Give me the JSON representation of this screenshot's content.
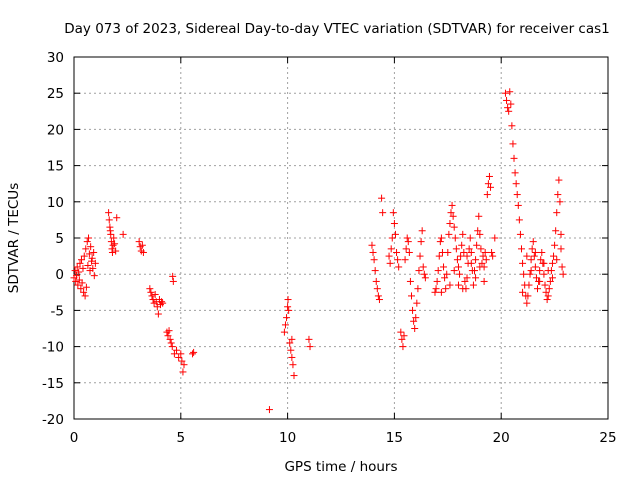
{
  "chart_data": {
    "type": "scatter",
    "title": "Day 073 of 2023, Sidereal Day-to-day VTEC variation (SDTVAR) for receiver cas1",
    "xlabel": "GPS time / hours",
    "ylabel": "SDTVAR / TECUs",
    "xlim": [
      0,
      25
    ],
    "ylim": [
      -20,
      30
    ],
    "xticks": [
      0,
      5,
      10,
      15,
      20,
      25
    ],
    "yticks": [
      -20,
      -15,
      -10,
      -5,
      0,
      5,
      10,
      15,
      20,
      25,
      30
    ],
    "grid": true,
    "marker": "+",
    "color": "#ff0000",
    "series": [
      {
        "name": "cas1",
        "points": [
          [
            0.0,
            -0.5
          ],
          [
            0.05,
            0.5
          ],
          [
            0.08,
            -1.0
          ],
          [
            0.12,
            -0.2
          ],
          [
            0.15,
            1.0
          ],
          [
            0.18,
            -1.5
          ],
          [
            0.22,
            0.3
          ],
          [
            0.25,
            -0.8
          ],
          [
            0.28,
            1.5
          ],
          [
            0.32,
            -2.0
          ],
          [
            0.35,
            2.0
          ],
          [
            0.38,
            -1.2
          ],
          [
            0.42,
            0.8
          ],
          [
            0.45,
            -2.5
          ],
          [
            0.48,
            2.5
          ],
          [
            0.52,
            -3.0
          ],
          [
            0.55,
            3.5
          ],
          [
            0.58,
            -1.8
          ],
          [
            0.62,
            4.5
          ],
          [
            0.65,
            1.2
          ],
          [
            0.68,
            5.0
          ],
          [
            0.72,
            2.8
          ],
          [
            0.75,
            0.5
          ],
          [
            0.78,
            3.8
          ],
          [
            0.82,
            1.8
          ],
          [
            0.85,
            2.2
          ],
          [
            0.88,
            0.8
          ],
          [
            0.92,
            3.0
          ],
          [
            0.95,
            -0.2
          ],
          [
            1.0,
            1.5
          ],
          [
            1.62,
            8.5
          ],
          [
            1.65,
            7.5
          ],
          [
            1.68,
            6.5
          ],
          [
            1.7,
            6.0
          ],
          [
            1.72,
            5.5
          ],
          [
            1.75,
            4.5
          ],
          [
            1.78,
            3.5
          ],
          [
            1.8,
            3.0
          ],
          [
            1.83,
            4.0
          ],
          [
            1.86,
            5.0
          ],
          [
            1.9,
            4.2
          ],
          [
            1.95,
            3.2
          ],
          [
            2.0,
            7.8
          ],
          [
            2.3,
            5.5
          ],
          [
            3.05,
            4.5
          ],
          [
            3.1,
            3.8
          ],
          [
            3.15,
            3.2
          ],
          [
            3.2,
            4.0
          ],
          [
            3.25,
            3.0
          ],
          [
            3.55,
            -2.0
          ],
          [
            3.6,
            -2.5
          ],
          [
            3.65,
            -3.0
          ],
          [
            3.7,
            -3.5
          ],
          [
            3.75,
            -4.0
          ],
          [
            3.8,
            -2.8
          ],
          [
            3.85,
            -3.8
          ],
          [
            3.9,
            -4.5
          ],
          [
            3.95,
            -5.5
          ],
          [
            4.0,
            -3.5
          ],
          [
            4.05,
            -4.2
          ],
          [
            4.1,
            -3.8
          ],
          [
            4.15,
            -4.0
          ],
          [
            4.35,
            -8.0
          ],
          [
            4.4,
            -8.5
          ],
          [
            4.45,
            -7.8
          ],
          [
            4.5,
            -9.0
          ],
          [
            4.55,
            -9.5
          ],
          [
            4.6,
            -10.0
          ],
          [
            4.62,
            -0.3
          ],
          [
            4.65,
            -1.0
          ],
          [
            4.7,
            -11.0
          ],
          [
            4.8,
            -10.5
          ],
          [
            4.9,
            -11.5
          ],
          [
            5.0,
            -11.0
          ],
          [
            5.05,
            -12.0
          ],
          [
            5.1,
            -13.5
          ],
          [
            5.15,
            -12.5
          ],
          [
            5.55,
            -11.0
          ],
          [
            5.6,
            -10.8
          ],
          [
            9.15,
            -18.7
          ],
          [
            9.85,
            -8.0
          ],
          [
            9.9,
            -7.0
          ],
          [
            9.95,
            -6.0
          ],
          [
            10.0,
            -4.5
          ],
          [
            10.02,
            -3.5
          ],
          [
            10.05,
            -5.0
          ],
          [
            10.1,
            -9.5
          ],
          [
            10.15,
            -10.5
          ],
          [
            10.2,
            -11.5
          ],
          [
            10.25,
            -12.5
          ],
          [
            10.3,
            -14.0
          ],
          [
            10.2,
            -9.0
          ],
          [
            11.0,
            -9.0
          ],
          [
            11.05,
            -10.0
          ],
          [
            13.95,
            4.0
          ],
          [
            14.0,
            3.0
          ],
          [
            14.05,
            2.0
          ],
          [
            14.1,
            0.5
          ],
          [
            14.15,
            -1.0
          ],
          [
            14.2,
            -2.0
          ],
          [
            14.25,
            -3.0
          ],
          [
            14.3,
            -3.5
          ],
          [
            14.4,
            10.5
          ],
          [
            14.45,
            8.5
          ],
          [
            14.75,
            2.5
          ],
          [
            14.8,
            1.5
          ],
          [
            14.85,
            3.5
          ],
          [
            14.9,
            5.0
          ],
          [
            14.95,
            8.5
          ],
          [
            15.0,
            7.0
          ],
          [
            15.05,
            5.5
          ],
          [
            15.1,
            3.0
          ],
          [
            15.15,
            2.0
          ],
          [
            15.2,
            1.0
          ],
          [
            15.3,
            -8.0
          ],
          [
            15.35,
            -9.0
          ],
          [
            15.4,
            -10.0
          ],
          [
            15.45,
            -8.5
          ],
          [
            15.5,
            2.0
          ],
          [
            15.55,
            3.5
          ],
          [
            15.6,
            5.0
          ],
          [
            15.65,
            4.5
          ],
          [
            15.7,
            3.0
          ],
          [
            15.75,
            -1.0
          ],
          [
            15.8,
            -3.0
          ],
          [
            15.85,
            -5.0
          ],
          [
            15.9,
            -6.5
          ],
          [
            15.95,
            -7.5
          ],
          [
            16.0,
            -6.0
          ],
          [
            16.05,
            -4.0
          ],
          [
            16.1,
            -2.0
          ],
          [
            16.15,
            0.5
          ],
          [
            16.2,
            2.5
          ],
          [
            16.25,
            4.5
          ],
          [
            16.3,
            6.0
          ],
          [
            16.35,
            1.0
          ],
          [
            16.4,
            0.0
          ],
          [
            16.45,
            -0.5
          ],
          [
            16.9,
            -2.5
          ],
          [
            16.95,
            -2.0
          ],
          [
            17.0,
            -1.0
          ],
          [
            17.05,
            0.5
          ],
          [
            17.1,
            2.5
          ],
          [
            17.15,
            4.5
          ],
          [
            17.2,
            5.0
          ],
          [
            17.25,
            3.0
          ],
          [
            17.3,
            1.0
          ],
          [
            17.35,
            -0.5
          ],
          [
            17.4,
            -2.0
          ],
          [
            17.45,
            0.0
          ],
          [
            17.5,
            3.0
          ],
          [
            17.55,
            5.5
          ],
          [
            17.6,
            7.0
          ],
          [
            17.65,
            8.5
          ],
          [
            17.7,
            9.5
          ],
          [
            17.75,
            8.0
          ],
          [
            17.8,
            6.5
          ],
          [
            17.85,
            5.0
          ],
          [
            17.9,
            3.5
          ],
          [
            17.95,
            2.0
          ],
          [
            18.0,
            1.0
          ],
          [
            18.05,
            0.0
          ],
          [
            18.1,
            2.5
          ],
          [
            18.15,
            4.0
          ],
          [
            18.2,
            5.5
          ],
          [
            18.25,
            3.0
          ],
          [
            18.3,
            -1.0
          ],
          [
            18.35,
            -2.0
          ],
          [
            18.4,
            -0.5
          ],
          [
            18.45,
            1.5
          ],
          [
            18.5,
            3.5
          ],
          [
            18.55,
            5.0
          ],
          [
            18.6,
            3.0
          ],
          [
            18.65,
            0.5
          ],
          [
            18.7,
            -1.5
          ],
          [
            18.75,
            0.5
          ],
          [
            18.8,
            2.0
          ],
          [
            18.85,
            4.0
          ],
          [
            18.9,
            6.0
          ],
          [
            18.95,
            8.0
          ],
          [
            19.0,
            5.5
          ],
          [
            19.05,
            3.5
          ],
          [
            19.1,
            1.5
          ],
          [
            19.15,
            2.5
          ],
          [
            19.2,
            1.0
          ],
          [
            19.25,
            3.0
          ],
          [
            19.3,
            2.0
          ],
          [
            19.35,
            11.0
          ],
          [
            19.4,
            12.5
          ],
          [
            19.45,
            13.5
          ],
          [
            19.5,
            12.0
          ],
          [
            19.55,
            3.0
          ],
          [
            19.6,
            2.5
          ],
          [
            19.7,
            5.0
          ],
          [
            17.2,
            -2.5
          ],
          [
            17.6,
            -1.5
          ],
          [
            17.8,
            0.5
          ],
          [
            18.0,
            -1.5
          ],
          [
            18.2,
            -2.0
          ],
          [
            18.4,
            2.5
          ],
          [
            18.6,
            1.5
          ],
          [
            18.8,
            -0.5
          ],
          [
            19.0,
            1.0
          ],
          [
            19.2,
            -1.0
          ],
          [
            20.2,
            25.0
          ],
          [
            20.25,
            24.0
          ],
          [
            20.3,
            23.0
          ],
          [
            20.35,
            22.5
          ],
          [
            20.4,
            25.2
          ],
          [
            20.45,
            23.5
          ],
          [
            20.5,
            20.5
          ],
          [
            20.55,
            18.0
          ],
          [
            20.6,
            16.0
          ],
          [
            20.65,
            14.0
          ],
          [
            20.7,
            12.5
          ],
          [
            20.75,
            11.0
          ],
          [
            20.8,
            9.5
          ],
          [
            20.85,
            7.5
          ],
          [
            20.9,
            5.5
          ],
          [
            20.95,
            3.5
          ],
          [
            21.0,
            1.5
          ],
          [
            21.05,
            0.0
          ],
          [
            21.1,
            -1.5
          ],
          [
            21.15,
            -3.0
          ],
          [
            21.2,
            -4.0
          ],
          [
            21.25,
            -3.0
          ],
          [
            21.3,
            -1.5
          ],
          [
            21.35,
            0.0
          ],
          [
            21.4,
            2.0
          ],
          [
            21.45,
            3.5
          ],
          [
            21.5,
            4.5
          ],
          [
            21.55,
            2.5
          ],
          [
            21.6,
            1.0
          ],
          [
            21.65,
            -0.5
          ],
          [
            21.7,
            -2.0
          ],
          [
            21.75,
            -1.0
          ],
          [
            21.8,
            0.5
          ],
          [
            21.85,
            2.0
          ],
          [
            21.9,
            3.0
          ],
          [
            21.95,
            1.5
          ],
          [
            22.0,
            0.0
          ],
          [
            22.05,
            -1.5
          ],
          [
            22.1,
            -2.5
          ],
          [
            22.15,
            -3.5
          ],
          [
            22.2,
            -3.0
          ],
          [
            22.25,
            -2.0
          ],
          [
            22.3,
            -1.0
          ],
          [
            22.35,
            0.5
          ],
          [
            22.4,
            1.5
          ],
          [
            22.45,
            2.5
          ],
          [
            22.5,
            4.0
          ],
          [
            22.55,
            6.0
          ],
          [
            22.6,
            8.5
          ],
          [
            22.65,
            11.0
          ],
          [
            22.7,
            13.0
          ],
          [
            22.75,
            10.0
          ],
          [
            22.8,
            5.5
          ],
          [
            22.85,
            1.0
          ],
          [
            22.9,
            0.0
          ],
          [
            21.0,
            -2.5
          ],
          [
            21.2,
            2.5
          ],
          [
            21.4,
            0.5
          ],
          [
            21.6,
            3.0
          ],
          [
            21.8,
            -1.0
          ],
          [
            22.0,
            1.5
          ],
          [
            22.2,
            0.5
          ],
          [
            22.4,
            -0.5
          ],
          [
            22.6,
            2.0
          ],
          [
            22.8,
            3.5
          ]
        ]
      }
    ]
  }
}
